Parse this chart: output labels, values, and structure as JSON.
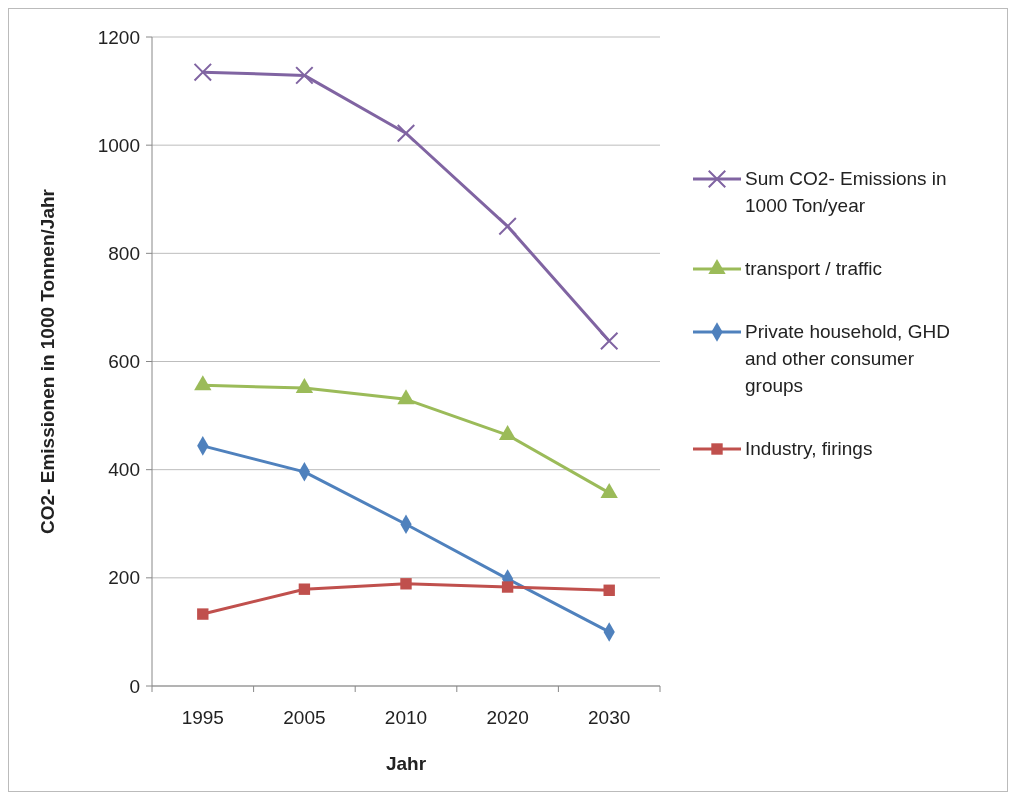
{
  "chart_data": {
    "type": "line",
    "xlabel": "Jahr",
    "ylabel": "CO2- Emissionen in 1000 Tonnen/Jahr",
    "categories": [
      "1995",
      "2005",
      "2010",
      "2020",
      "2030"
    ],
    "ylim": [
      0,
      1200
    ],
    "yticks": [
      0,
      200,
      400,
      600,
      800,
      1000,
      1200
    ],
    "grid": "y",
    "legend": "right",
    "series": [
      {
        "name": "Sum CO2- Emissions in 1000 Ton/year",
        "color": "#8064a2",
        "marker": "cross",
        "values": [
          1135,
          1129,
          1022,
          850,
          638
        ]
      },
      {
        "name": "transport / traffic",
        "color": "#9bbb59",
        "marker": "triangle",
        "values": [
          556,
          551,
          530,
          464,
          357
        ]
      },
      {
        "name": "Private household, GHD and other consumer groups",
        "color": "#4f81bd",
        "marker": "diamond",
        "values": [
          444,
          396,
          299,
          198,
          100
        ]
      },
      {
        "name": "Industry, firings",
        "color": "#c0504d",
        "marker": "square",
        "values": [
          133,
          179,
          189,
          183,
          177
        ]
      }
    ]
  }
}
